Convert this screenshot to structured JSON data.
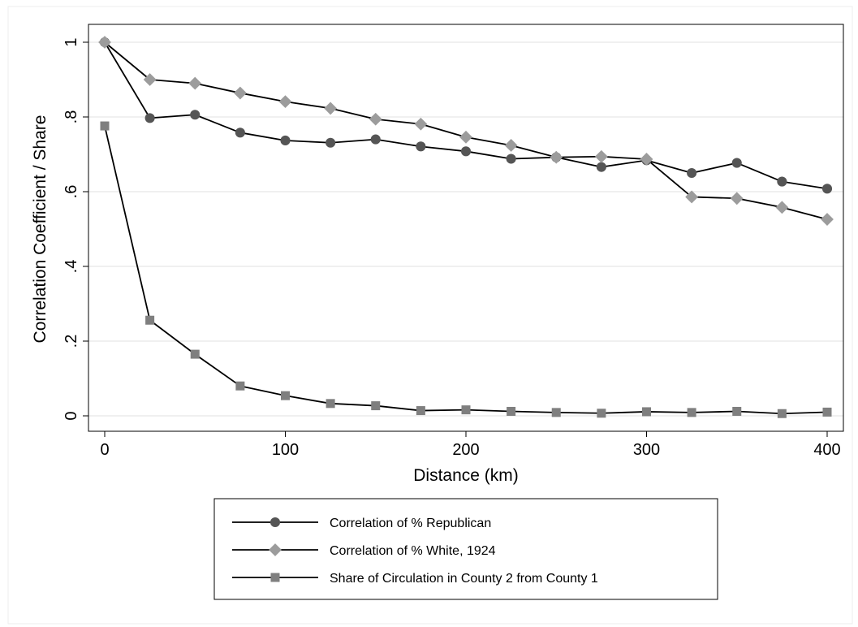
{
  "chart_data": {
    "type": "line",
    "title": "",
    "xlabel": "Distance (km)",
    "ylabel": "Correlation Coefficient / Share",
    "xlim": [
      0,
      400
    ],
    "ylim": [
      0,
      1
    ],
    "x": [
      0,
      25,
      50,
      75,
      100,
      125,
      150,
      175,
      200,
      225,
      250,
      275,
      300,
      325,
      350,
      375,
      400
    ],
    "xticks": [
      0,
      100,
      200,
      300,
      400
    ],
    "xtick_labels": [
      "0",
      "100",
      "200",
      "300",
      "400"
    ],
    "yticks": [
      0,
      0.2,
      0.4,
      0.6,
      0.8,
      1
    ],
    "ytick_labels": [
      "0",
      ".2",
      ".4",
      ".6",
      ".8",
      "1"
    ],
    "grid": "horizontal",
    "legend_position": "bottom",
    "series": [
      {
        "name": "Correlation of % Republican",
        "marker": "circle",
        "marker_color": "#555555",
        "values": [
          1.0,
          0.797,
          0.806,
          0.758,
          0.737,
          0.731,
          0.74,
          0.721,
          0.708,
          0.688,
          0.692,
          0.666,
          0.684,
          0.65,
          0.677,
          0.627,
          0.608
        ]
      },
      {
        "name": "Correlation of % White, 1924",
        "marker": "diamond",
        "marker_color": "#9c9c9c",
        "values": [
          1.0,
          0.9,
          0.89,
          0.864,
          0.841,
          0.823,
          0.794,
          0.781,
          0.746,
          0.724,
          0.692,
          0.694,
          0.687,
          0.586,
          0.582,
          0.558,
          0.526
        ]
      },
      {
        "name": "Share of Circulation in County 2 from County 1",
        "marker": "square",
        "marker_color": "#7f7f7f",
        "values": [
          0.776,
          0.256,
          0.165,
          0.08,
          0.054,
          0.033,
          0.027,
          0.014,
          0.016,
          0.012,
          0.009,
          0.007,
          0.011,
          0.009,
          0.012,
          0.006,
          0.01
        ]
      }
    ]
  }
}
